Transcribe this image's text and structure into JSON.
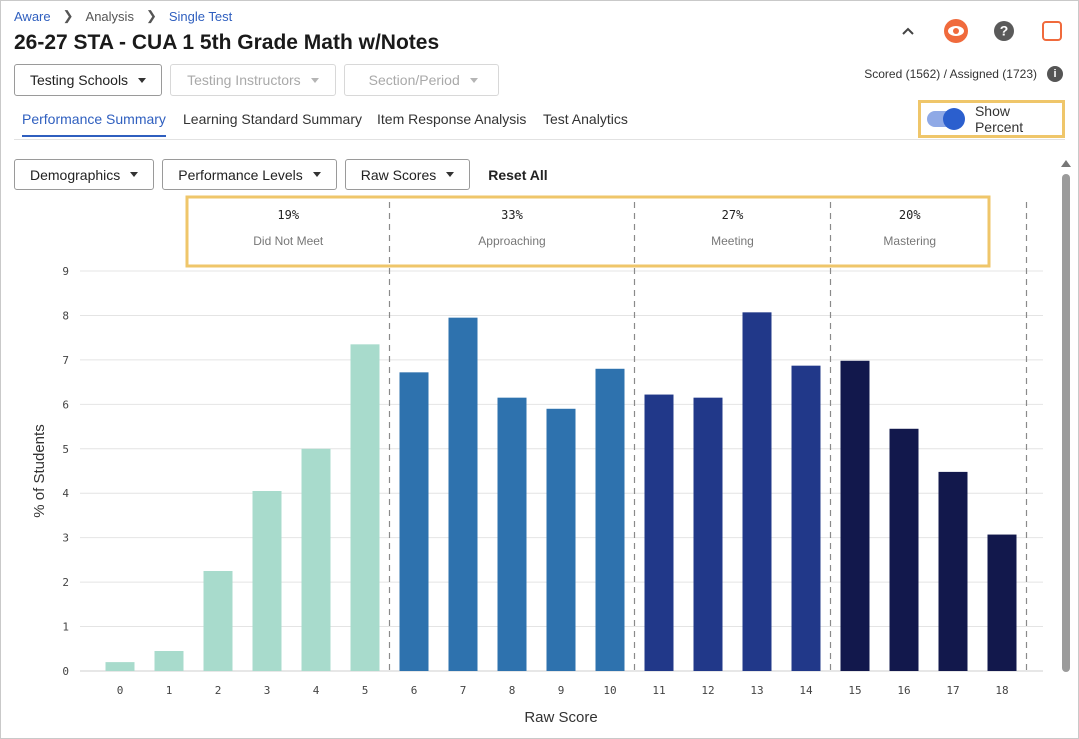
{
  "breadcrumb": {
    "home": "Aware",
    "section": "Analysis",
    "current": "Single Test"
  },
  "title": "26-27 STA - CUA 1 5th Grade Math w/Notes",
  "icons": {
    "collapse": "chevron-up-icon",
    "view": "eye-icon",
    "help": "help-icon",
    "window": "square-icon"
  },
  "filters": [
    {
      "label": "Testing Schools",
      "disabled": false
    },
    {
      "label": "Testing Instructors",
      "disabled": true
    },
    {
      "label": "Section/Period",
      "disabled": true
    }
  ],
  "scored_text": "Scored (1562) / Assigned (1723)",
  "tabs": [
    "Performance Summary",
    "Learning Standard Summary",
    "Item Response Analysis",
    "Test Analytics"
  ],
  "active_tab": "Performance Summary",
  "show_percent": {
    "label": "Show Percent",
    "on": true
  },
  "chart_controls": {
    "demographics": "Demographics",
    "performance_levels": "Performance Levels",
    "raw_scores": "Raw Scores",
    "reset": "Reset All"
  },
  "colors": {
    "accent": "#2f5fbf",
    "highlight": "#efc66a",
    "did_not_meet": "#a8dbcc",
    "approaching": "#2e72ae",
    "meeting": "#213889",
    "mastering": "#12184c"
  },
  "chart_data": {
    "type": "bar",
    "xlabel": "Raw Score",
    "ylabel": "% of Students",
    "ylim": [
      0,
      9
    ],
    "yticks": [
      0,
      1,
      2,
      3,
      4,
      5,
      6,
      7,
      8,
      9
    ],
    "grid": true,
    "categories": [
      "0",
      "1",
      "2",
      "3",
      "4",
      "5",
      "6",
      "7",
      "8",
      "9",
      "10",
      "11",
      "12",
      "13",
      "14",
      "15",
      "16",
      "17",
      "18"
    ],
    "values": [
      0.2,
      0.45,
      2.25,
      4.05,
      5.0,
      7.35,
      6.72,
      7.95,
      6.15,
      5.9,
      6.8,
      6.22,
      6.15,
      8.07,
      6.87,
      6.98,
      5.45,
      4.48,
      3.07
    ],
    "levels": [
      {
        "name": "Did Not Meet",
        "percent": "19%",
        "from": 0,
        "to": 5,
        "color": "#a8dbcc"
      },
      {
        "name": "Approaching",
        "percent": "33%",
        "from": 6,
        "to": 10,
        "color": "#2e72ae"
      },
      {
        "name": "Meeting",
        "percent": "27%",
        "from": 11,
        "to": 14,
        "color": "#213889"
      },
      {
        "name": "Mastering",
        "percent": "20%",
        "from": 15,
        "to": 18,
        "color": "#12184c"
      }
    ]
  }
}
